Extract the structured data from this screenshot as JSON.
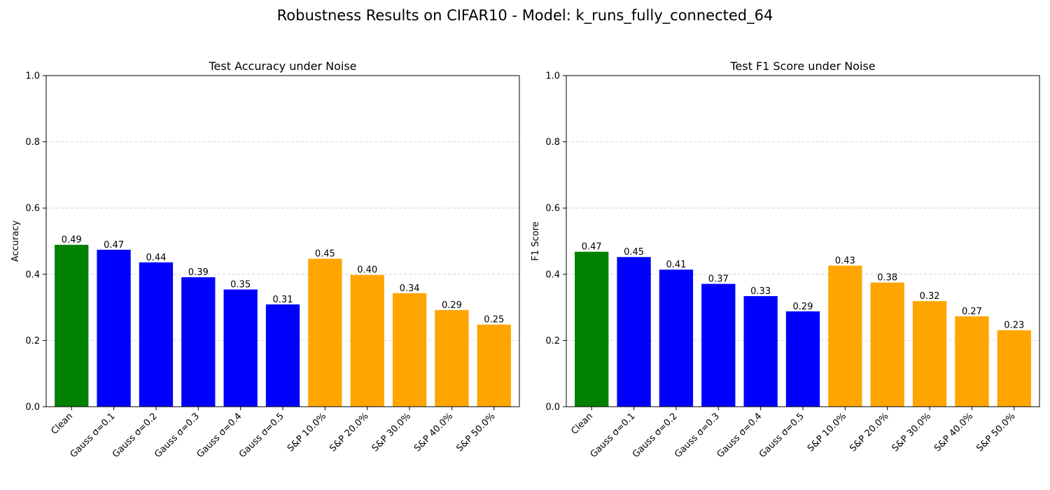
{
  "figure": {
    "suptitle": "Robustness Results on CIFAR10 - Model: k_runs_fully_connected_64"
  },
  "chart_data": [
    {
      "type": "bar",
      "title": "Test Accuracy under Noise",
      "xlabel": "",
      "ylabel": "Accuracy",
      "ylim": [
        0,
        1.0
      ],
      "yticks": [
        "0.0",
        "0.2",
        "0.4",
        "0.6",
        "0.8",
        "1.0"
      ],
      "grid": "y-dashed",
      "categories": [
        "Clean",
        "Gauss σ=0.1",
        "Gauss σ=0.2",
        "Gauss σ=0.3",
        "Gauss σ=0.4",
        "Gauss σ=0.5",
        "S&P 10.0%",
        "S&P 20.0%",
        "S&P 30.0%",
        "S&P 40.0%",
        "S&P 50.0%"
      ],
      "values": [
        0.489,
        0.474,
        0.436,
        0.391,
        0.354,
        0.309,
        0.447,
        0.398,
        0.343,
        0.292,
        0.248
      ],
      "data_labels": [
        "0.49",
        "0.47",
        "0.44",
        "0.39",
        "0.35",
        "0.31",
        "0.45",
        "0.40",
        "0.34",
        "0.29",
        "0.25"
      ],
      "colors": [
        "#008000",
        "#0000ff",
        "#0000ff",
        "#0000ff",
        "#0000ff",
        "#0000ff",
        "#ffa500",
        "#ffa500",
        "#ffa500",
        "#ffa500",
        "#ffa500"
      ]
    },
    {
      "type": "bar",
      "title": "Test F1 Score under Noise",
      "xlabel": "",
      "ylabel": "F1 Score",
      "ylim": [
        0,
        1.0
      ],
      "yticks": [
        "0.0",
        "0.2",
        "0.4",
        "0.6",
        "0.8",
        "1.0"
      ],
      "grid": "y-dashed",
      "categories": [
        "Clean",
        "Gauss σ=0.1",
        "Gauss σ=0.2",
        "Gauss σ=0.3",
        "Gauss σ=0.4",
        "Gauss σ=0.5",
        "S&P 10.0%",
        "S&P 20.0%",
        "S&P 30.0%",
        "S&P 40.0%",
        "S&P 50.0%"
      ],
      "values": [
        0.468,
        0.452,
        0.414,
        0.371,
        0.334,
        0.288,
        0.426,
        0.375,
        0.319,
        0.273,
        0.231
      ],
      "data_labels": [
        "0.47",
        "0.45",
        "0.41",
        "0.37",
        "0.33",
        "0.29",
        "0.43",
        "0.38",
        "0.32",
        "0.27",
        "0.23"
      ],
      "colors": [
        "#008000",
        "#0000ff",
        "#0000ff",
        "#0000ff",
        "#0000ff",
        "#0000ff",
        "#ffa500",
        "#ffa500",
        "#ffa500",
        "#ffa500",
        "#ffa500"
      ]
    }
  ]
}
